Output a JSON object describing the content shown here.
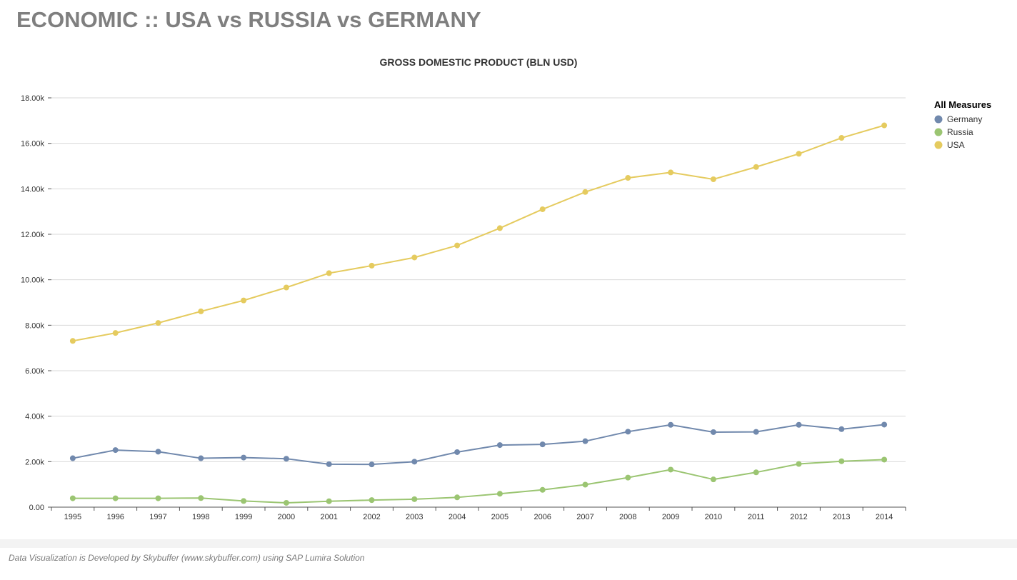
{
  "page": {
    "title": "ECONOMIC :: USA vs RUSSIA vs GERMANY",
    "footer": "Data Visualization is Developed by Skybuffer (www.skybuffer.com) using SAP Lumira Solution"
  },
  "chart_data": {
    "type": "line",
    "title": "GROSS DOMESTIC PRODUCT (BLN USD)",
    "xlabel": "",
    "ylabel": "",
    "categories": [
      "1995",
      "1996",
      "1997",
      "1998",
      "1999",
      "2000",
      "2001",
      "2002",
      "2003",
      "2004",
      "2005",
      "2006",
      "2007",
      "2008",
      "2009",
      "2010",
      "2011",
      "2012",
      "2013",
      "2014"
    ],
    "ylim": [
      0,
      18000
    ],
    "yticks": [
      0,
      2000,
      4000,
      6000,
      8000,
      10000,
      12000,
      14000,
      16000,
      18000
    ],
    "ytick_labels": [
      "0.00",
      "2.00k",
      "4.00k",
      "6.00k",
      "8.00k",
      "10.00k",
      "12.00k",
      "14.00k",
      "16.00k",
      "18.00k"
    ],
    "grid": true,
    "legend": {
      "title": "All Measures",
      "placement": "right"
    },
    "series": [
      {
        "name": "Germany",
        "color": "#7189ad",
        "values": [
          2150,
          2510,
          2440,
          2150,
          2180,
          2130,
          1890,
          1880,
          2000,
          2420,
          2730,
          2760,
          2900,
          3320,
          3620,
          3300,
          3310,
          3620,
          3430,
          3630
        ]
      },
      {
        "name": "Russia",
        "color": "#9bc572",
        "values": [
          390,
          390,
          390,
          400,
          270,
          190,
          260,
          310,
          350,
          430,
          590,
          760,
          990,
          1300,
          1650,
          1220,
          1530,
          1900,
          2020,
          2090
        ]
      },
      {
        "name": "USA",
        "color": "#e5cb5f",
        "values": [
          7310,
          7660,
          8100,
          8610,
          9090,
          9660,
          10290,
          10620,
          10980,
          11510,
          12270,
          13100,
          13860,
          14480,
          14720,
          14420,
          14960,
          15540,
          16240,
          16790
        ]
      }
    ]
  }
}
